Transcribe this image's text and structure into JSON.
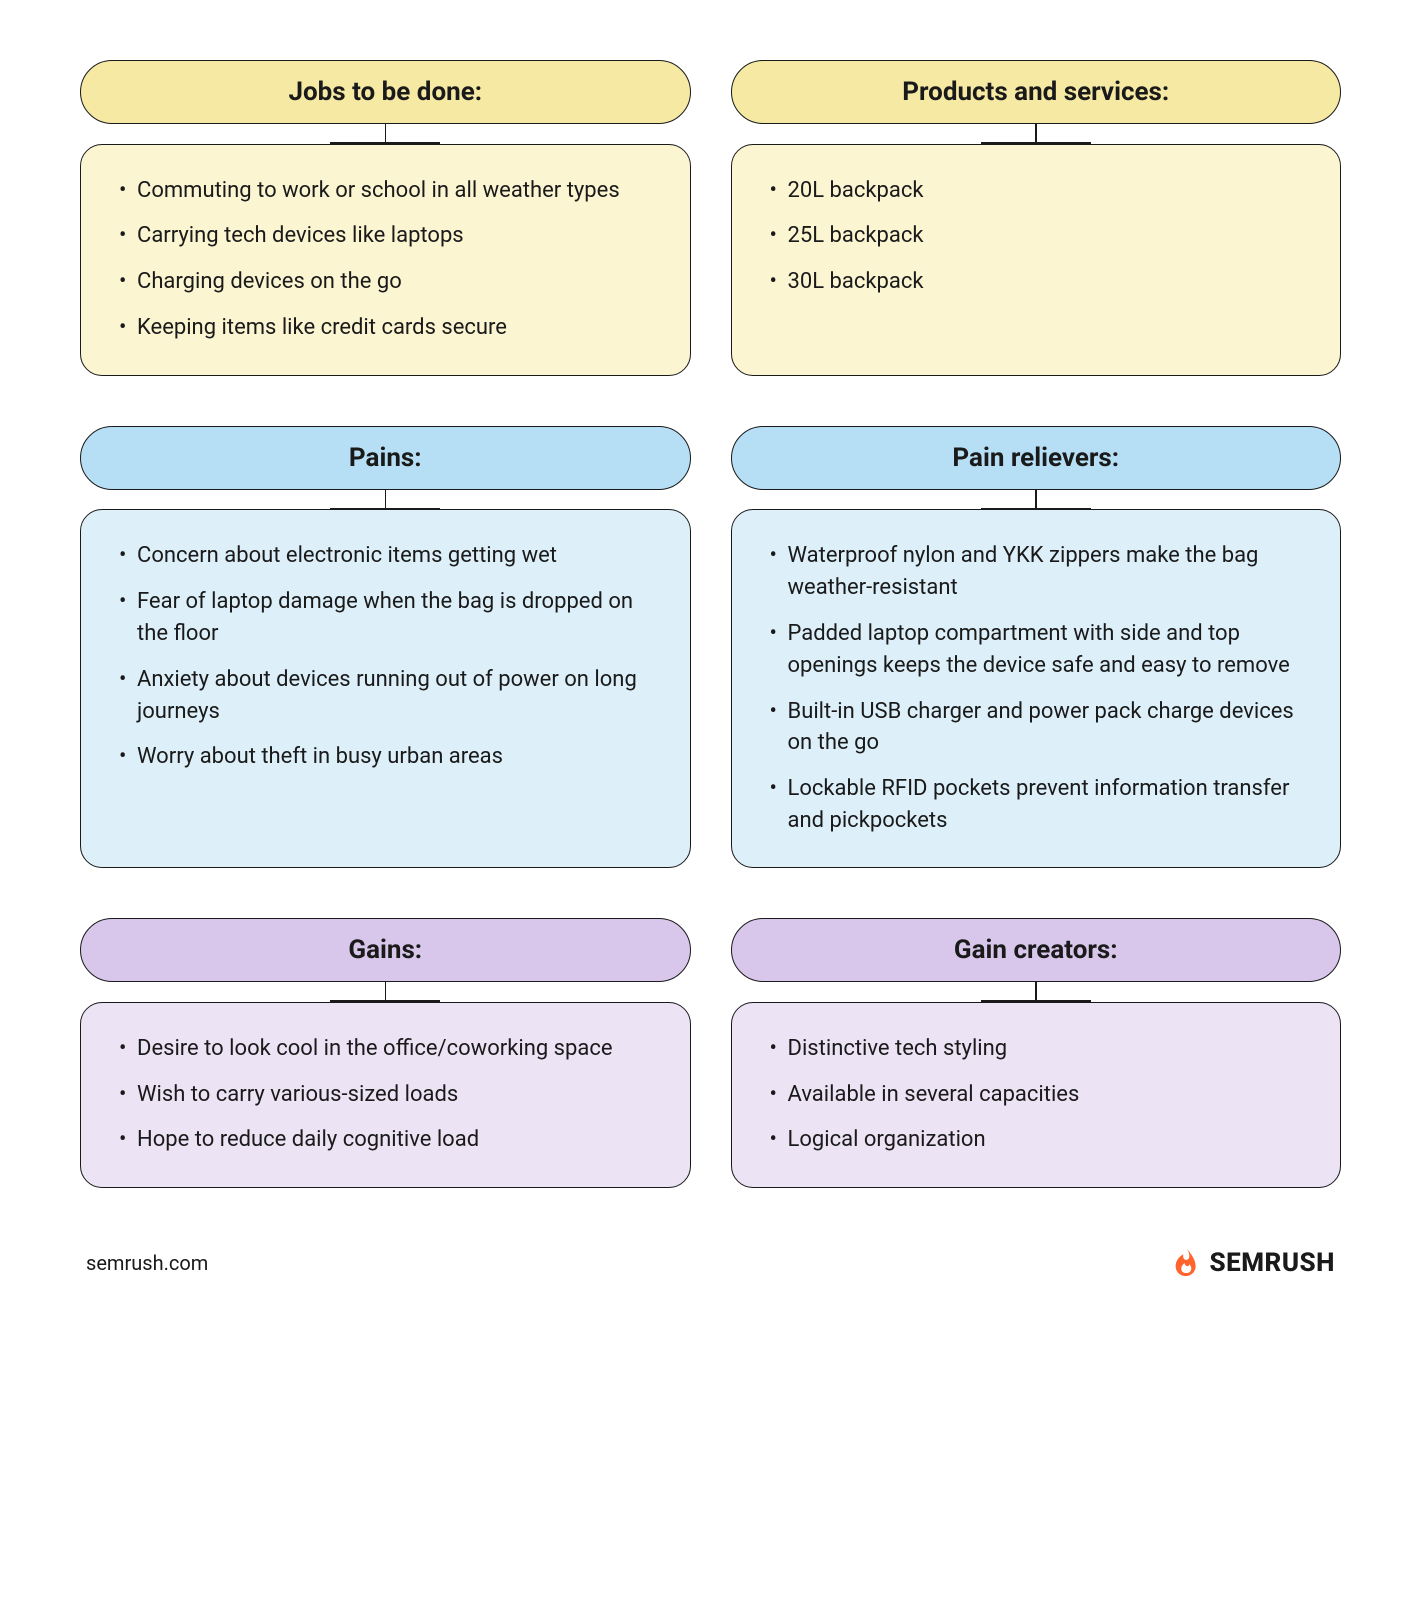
{
  "layout": {
    "background_color": "#ffffff",
    "border_color": "#1a1a1a",
    "text_color": "#1a1a1a",
    "header_fontsize": 26,
    "body_fontsize": 22,
    "border_radius_header": 999,
    "border_radius_body": 22,
    "column_gap": 40,
    "row_gap": 50
  },
  "rows": [
    {
      "color_header": "#f5e9a3",
      "color_body": "#fbf5d2",
      "left": {
        "title": "Jobs to be done:",
        "items": [
          "Commuting to work or school in all weather types",
          "Carrying tech devices like laptops",
          "Charging devices on the go",
          "Keeping items like credit cards secure"
        ]
      },
      "right": {
        "title": "Products and services:",
        "items": [
          "20L backpack",
          "25L backpack",
          "30L backpack"
        ]
      }
    },
    {
      "color_header": "#b6dff5",
      "color_body": "#ddf0fa",
      "left": {
        "title": "Pains:",
        "items": [
          "Concern about electronic items getting wet",
          "Fear of laptop damage when the bag is dropped on the floor",
          "Anxiety about devices running out of power on long journeys",
          "Worry about theft in busy urban areas"
        ]
      },
      "right": {
        "title": "Pain relievers:",
        "items": [
          "Waterproof nylon and YKK zippers make the bag weather-resistant",
          "Padded laptop compartment with side and top openings keeps the device safe and easy to remove",
          "Built-in USB charger and power pack charge devices on the go",
          "Lockable RFID pockets prevent information transfer and pickpockets"
        ]
      }
    },
    {
      "color_header": "#d8c6eb",
      "color_body": "#ece3f5",
      "left": {
        "title": "Gains:",
        "items": [
          "Desire to look cool in the office/coworking space",
          "Wish to carry various-sized loads",
          "Hope to reduce daily cognitive load"
        ]
      },
      "right": {
        "title": "Gain creators:",
        "items": [
          "Distinctive tech styling",
          "Available in several capacities",
          "Logical organization"
        ]
      }
    }
  ],
  "footer": {
    "url": "semrush.com",
    "brand_text": "SEMRUSH",
    "brand_icon_color": "#ff642d"
  }
}
